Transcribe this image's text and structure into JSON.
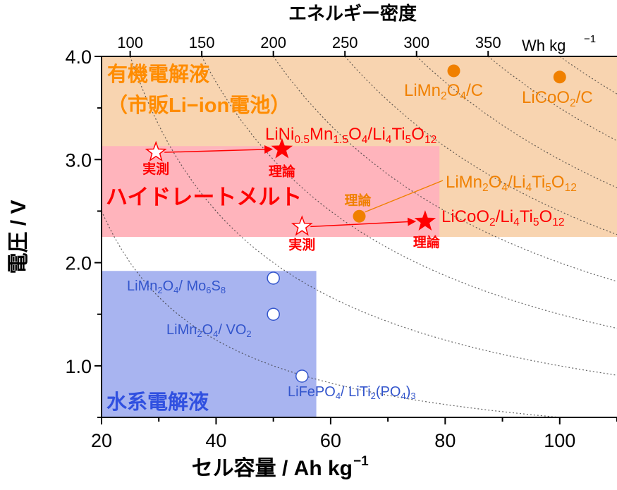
{
  "chart_data": {
    "type": "scatter",
    "title": "",
    "xlabel": "セル容量 / Ah kg",
    "xlabel_sup": "−1",
    "ylabel": "電圧 / V",
    "top_axis_title": "エネルギー密度",
    "top_axis_unit": "Wh kg",
    "top_axis_unit_sup": "−1",
    "xlim": [
      20,
      110
    ],
    "ylim": [
      0.5,
      4.0
    ],
    "x_ticks": [
      "20",
      "40",
      "60",
      "80",
      "100"
    ],
    "y_ticks": [
      "1.0",
      "2.0",
      "3.0",
      "4.0"
    ],
    "top_ticks": [
      {
        "label": "100",
        "x": 25.0
      },
      {
        "label": "150",
        "x": 37.5
      },
      {
        "label": "200",
        "x": 50.0
      },
      {
        "label": "250",
        "x": 62.5
      },
      {
        "label": "300",
        "x": 75.0
      },
      {
        "label": "350",
        "x": 87.5
      }
    ],
    "energy_curves_wh_per_kg": [
      50,
      100,
      150,
      200,
      250,
      300,
      350,
      400
    ],
    "regions": [
      {
        "label_lines": [
          "有機電解液",
          "（市販Li−ion電池）"
        ],
        "color": "#f8d4b0",
        "x": [
          20,
          110
        ],
        "y": [
          2.25,
          4.0
        ]
      },
      {
        "label_lines": [
          "ハイドレートメルト"
        ],
        "color": "#ffb4bc",
        "x": [
          20,
          79
        ],
        "y": [
          2.25,
          3.13
        ]
      },
      {
        "label_lines": [
          "水系電解液"
        ],
        "color": "#a8b4f0",
        "x": [
          20,
          57.5
        ],
        "y": [
          0.5,
          1.92
        ]
      }
    ],
    "series": [
      {
        "points": [
          {
            "x": 81.5,
            "y": 3.86,
            "marker": "filled-circle",
            "color": "#f08000",
            "label_parts": [
              [
                "LiMn",
                ""
              ],
              [
                "2",
                "sub"
              ],
              [
                "O",
                ""
              ],
              [
                "4",
                "sub"
              ],
              [
                "/C",
                ""
              ]
            ]
          },
          {
            "x": 100.0,
            "y": 3.8,
            "marker": "filled-circle",
            "color": "#f08000",
            "label_parts": [
              [
                "LiCoO",
                ""
              ],
              [
                "2",
                "sub"
              ],
              [
                "/C",
                ""
              ]
            ]
          }
        ]
      },
      {
        "points": [
          {
            "x": 29.5,
            "y": 3.07,
            "marker": "open-star",
            "color": "#ff0000",
            "note": "実測"
          },
          {
            "x": 51.5,
            "y": 3.1,
            "marker": "filled-star",
            "color": "#ff0000",
            "note": "理論",
            "label_parts": [
              [
                "LiNi",
                ""
              ],
              [
                "0.5",
                "sub"
              ],
              [
                "Mn",
                ""
              ],
              [
                "1.5",
                "sub"
              ],
              [
                "O",
                ""
              ],
              [
                "4",
                "sub"
              ],
              [
                "/Li",
                ""
              ],
              [
                "4",
                "sub"
              ],
              [
                "Ti",
                ""
              ],
              [
                "5",
                "sub"
              ],
              [
                "O",
                ""
              ],
              [
                "12",
                "sub"
              ]
            ]
          },
          {
            "x": 55.0,
            "y": 2.35,
            "marker": "open-star",
            "color": "#ff0000",
            "note": "実測"
          },
          {
            "x": 76.5,
            "y": 2.4,
            "marker": "filled-star",
            "color": "#ff0000",
            "note": "理論",
            "label_parts": [
              [
                "LiCoO",
                ""
              ],
              [
                "2",
                "sub"
              ],
              [
                "/Li",
                ""
              ],
              [
                "4",
                "sub"
              ],
              [
                "Ti",
                ""
              ],
              [
                "5",
                "sub"
              ],
              [
                "O",
                ""
              ],
              [
                "12",
                "sub"
              ]
            ]
          },
          {
            "x": 65.0,
            "y": 2.45,
            "marker": "filled-circle",
            "color": "#f08000",
            "note": "理論",
            "label_parts": [
              [
                "LiMn",
                ""
              ],
              [
                "2",
                "sub"
              ],
              [
                "O",
                ""
              ],
              [
                "4",
                "sub"
              ],
              [
                "/Li",
                ""
              ],
              [
                "4",
                "sub"
              ],
              [
                "Ti",
                ""
              ],
              [
                "5",
                "sub"
              ],
              [
                "O",
                ""
              ],
              [
                "12",
                "sub"
              ]
            ]
          }
        ],
        "arrows": [
          {
            "from": [
              29.5,
              3.07
            ],
            "to": [
              51.5,
              3.1
            ]
          },
          {
            "from": [
              55.0,
              2.35
            ],
            "to": [
              76.5,
              2.4
            ]
          }
        ]
      },
      {
        "points": [
          {
            "x": 50.0,
            "y": 1.85,
            "marker": "open-circle",
            "color": "#3355cc",
            "label_parts": [
              [
                "LiMn",
                ""
              ],
              [
                "2",
                "sub"
              ],
              [
                "O",
                ""
              ],
              [
                "4",
                "sub"
              ],
              [
                "/ Mo",
                ""
              ],
              [
                "6",
                "sub"
              ],
              [
                "S",
                ""
              ],
              [
                "8",
                "sub"
              ]
            ]
          },
          {
            "x": 50.0,
            "y": 1.5,
            "marker": "open-circle",
            "color": "#3355cc",
            "label_parts": [
              [
                "LiMn",
                ""
              ],
              [
                "2",
                "sub"
              ],
              [
                "O",
                ""
              ],
              [
                "4",
                "sub"
              ],
              [
                "/ VO",
                ""
              ],
              [
                "2",
                "sub"
              ]
            ]
          },
          {
            "x": 55.0,
            "y": 0.9,
            "marker": "open-circle",
            "color": "#3355cc",
            "label_parts": [
              [
                "LiFePO",
                ""
              ],
              [
                "4",
                "sub"
              ],
              [
                "/ LiTi",
                ""
              ],
              [
                "2",
                "sub"
              ],
              [
                "(PO",
                ""
              ],
              [
                "4",
                "sub"
              ],
              [
                ")",
                ""
              ],
              [
                "3",
                "sub"
              ]
            ]
          }
        ]
      }
    ]
  }
}
